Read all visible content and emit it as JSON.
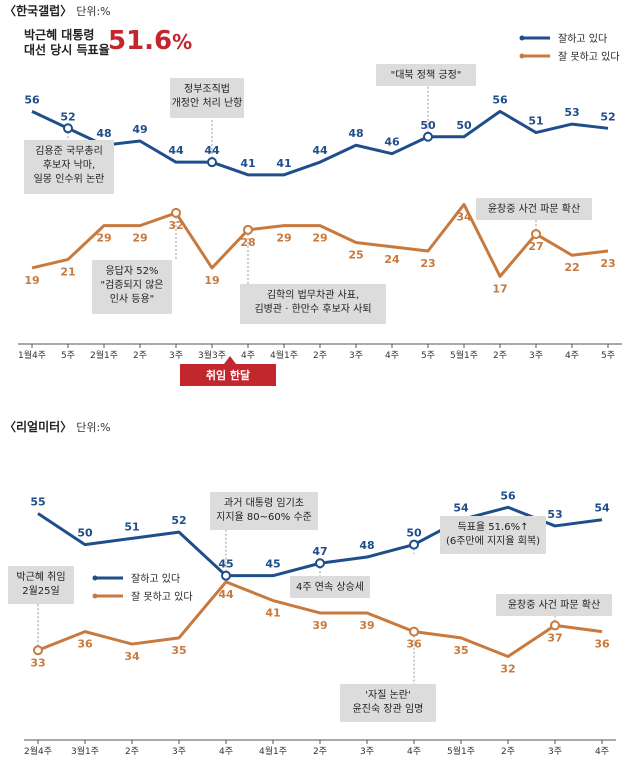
{
  "chart_data": [
    {
      "type": "line",
      "title": "한국갤럽",
      "unit_label": "단위:%",
      "headline": "박근혜 대통령\n대선 당시 득표율",
      "headline_value": "51.6",
      "headline_unit": "%",
      "categories": [
        "1월4주",
        "5주",
        "2월1주",
        "2주",
        "3주",
        "3월3주",
        "4주",
        "4월1주",
        "2주",
        "3주",
        "4주",
        "5주",
        "5월1주",
        "2주",
        "3주",
        "4주",
        "5주"
      ],
      "series": [
        {
          "name": "잘하고 있다",
          "color": "#1f4e8c",
          "values": [
            56,
            52,
            48,
            49,
            44,
            44,
            41,
            41,
            44,
            48,
            46,
            50,
            50,
            56,
            51,
            53,
            52
          ]
        },
        {
          "name": "잘 못하고 있다",
          "color": "#c87a3e",
          "values": [
            19,
            21,
            29,
            29,
            32,
            19,
            28,
            29,
            29,
            25,
            24,
            23,
            34,
            17,
            27,
            22,
            23
          ]
        }
      ],
      "ylim": [
        10,
        62
      ],
      "tag": "취임 한달",
      "annotations": [
        {
          "lines": [
            "김용준 국무총리",
            "후보자 낙마,",
            "일몽 인수위 논란"
          ],
          "series": 0,
          "index": 1
        },
        {
          "lines": [
            "정부조직법",
            "개정안 처리 난항"
          ],
          "series": 0,
          "index": 5
        },
        {
          "lines": [
            "\"대북 정책 긍정\""
          ],
          "series": 0,
          "index": 11
        },
        {
          "lines": [
            "응답자 52%",
            "\"검증되지 않은",
            "인사 등용\""
          ],
          "series": 1,
          "index": 4
        },
        {
          "lines": [
            "김학의 법무차관 사표,",
            "김병관 · 한만수 후보자 사퇴"
          ],
          "series": 1,
          "index": 6
        },
        {
          "lines": [
            "윤창중 사건 파문 확산"
          ],
          "series": 1,
          "index": 14
        }
      ]
    },
    {
      "type": "line",
      "title": "리얼미터",
      "unit_label": "단위:%",
      "categories": [
        "2월4주",
        "3월1주",
        "2주",
        "3주",
        "4주",
        "4월1주",
        "2주",
        "3주",
        "4주",
        "5월1주",
        "2주",
        "3주",
        "4주"
      ],
      "series": [
        {
          "name": "잘하고 있다",
          "color": "#1f4e8c",
          "values": [
            55,
            50,
            51,
            52,
            45,
            45,
            47,
            48,
            50,
            54,
            56,
            53,
            54
          ]
        },
        {
          "name": "잘 못하고 있다",
          "color": "#c87a3e",
          "values": [
            33,
            36,
            34,
            35,
            44,
            41,
            39,
            39,
            36,
            35,
            32,
            37,
            36
          ]
        }
      ],
      "ylim": [
        25,
        62
      ],
      "annotations": [
        {
          "lines": [
            "박근혜 취임",
            "2월25일"
          ],
          "series": 1,
          "index": 0
        },
        {
          "lines": [
            "과거 대통령 임기초",
            "지지율 80~60% 수준"
          ],
          "series": 0,
          "index": 4
        },
        {
          "lines": [
            "4주 연속 상승세"
          ],
          "series": 0,
          "index": 6
        },
        {
          "lines": [
            "득표율 51.6%↑",
            "(6주만에 지지율 회복)"
          ],
          "series": 0,
          "index": 8
        },
        {
          "lines": [
            "'자질 논란'",
            "윤진숙 장관 임명"
          ],
          "series": 1,
          "index": 8
        },
        {
          "lines": [
            "윤창중 사건 파문 확산"
          ],
          "series": 1,
          "index": 11
        }
      ]
    }
  ]
}
